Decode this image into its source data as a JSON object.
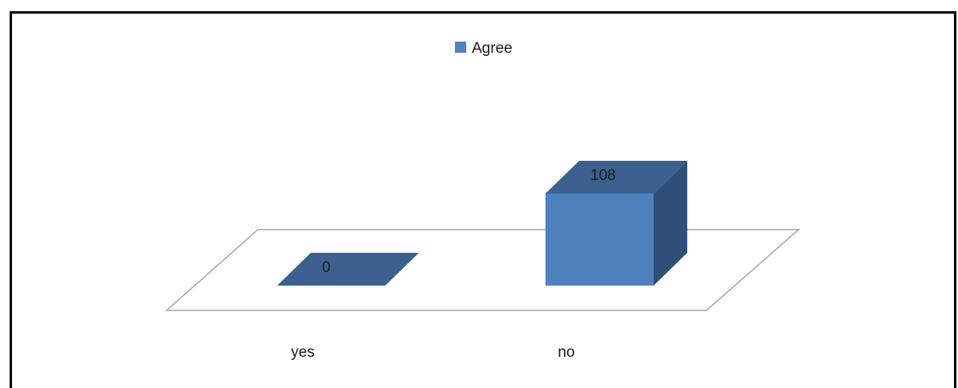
{
  "chart_data": {
    "type": "bar",
    "style": "3d-column",
    "categories": [
      "yes",
      "no"
    ],
    "series": [
      {
        "name": "Agree",
        "values": [
          0,
          108
        ]
      }
    ],
    "data_labels": [
      "0",
      "108"
    ],
    "legend": {
      "position": "top",
      "entries": [
        "Agree"
      ]
    },
    "ylim": [
      0,
      108
    ],
    "grid": false,
    "colors": {
      "front": "#4F81BD",
      "top": "#3C6190",
      "side": "#2F4F78",
      "floor_stroke": "#A6A6A6"
    }
  }
}
